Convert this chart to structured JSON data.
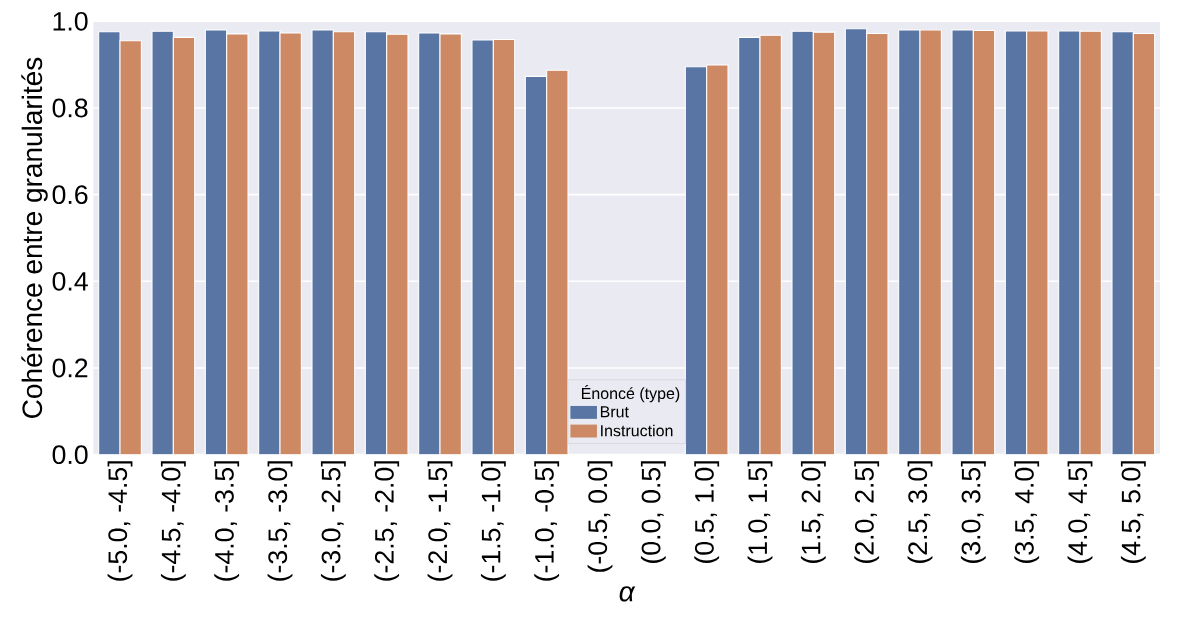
{
  "chart_data": {
    "type": "bar",
    "xlabel": "α",
    "ylabel": "Cohérence entre granularités",
    "legend_title": "Énoncé (type)",
    "categories": [
      "(-5.0, -4.5]",
      "(-4.5, -4.0]",
      "(-4.0, -3.5]",
      "(-3.5, -3.0]",
      "(-3.0, -2.5]",
      "(-2.5, -2.0]",
      "(-2.0, -1.5]",
      "(-1.5, -1.0]",
      "(-1.0, -0.5]",
      "(-0.5, 0.0]",
      "(0.0, 0.5]",
      "(0.5, 1.0]",
      "(1.0, 1.5]",
      "(1.5, 2.0]",
      "(2.0, 2.5]",
      "(2.5, 3.0]",
      "(3.0, 3.5]",
      "(3.5, 4.0]",
      "(4.0, 4.5]",
      "(4.5, 5.0]"
    ],
    "series": [
      {
        "name": "Brut",
        "color": "#5875a4",
        "values": [
          0.976,
          0.977,
          0.98,
          0.978,
          0.98,
          0.976,
          0.973,
          0.957,
          0.873,
          null,
          null,
          0.895,
          0.963,
          0.977,
          0.983,
          0.98,
          0.98,
          0.978,
          0.978,
          0.976
        ]
      },
      {
        "name": "Instruction",
        "color": "#cc8963",
        "values": [
          0.955,
          0.963,
          0.971,
          0.973,
          0.976,
          0.97,
          0.971,
          0.958,
          0.887,
          null,
          null,
          0.899,
          0.968,
          0.975,
          0.972,
          0.98,
          0.979,
          0.978,
          0.977,
          0.972
        ]
      }
    ],
    "ylim": [
      0,
      1.0
    ],
    "yticks": [
      {
        "value": 0,
        "label": "0.0"
      },
      0.2,
      0.4,
      0.6,
      0.8,
      {
        "value": 1,
        "label": "1.0"
      }
    ],
    "grid": "y",
    "legend": "bottom"
  }
}
